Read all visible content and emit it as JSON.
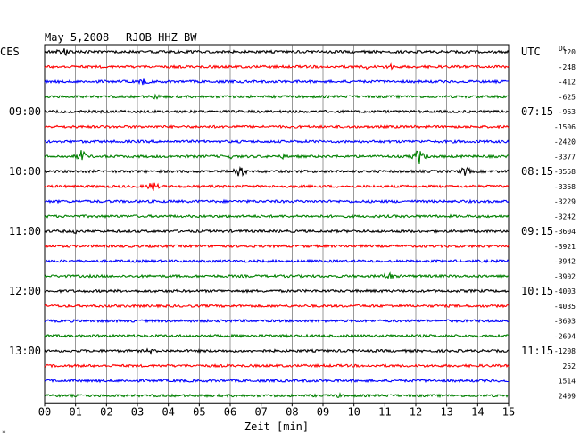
{
  "header": {
    "date": "May 5,2008",
    "station": "RJOB HHZ BW",
    "left_zone": "CES",
    "right_zone": "UTC",
    "dc_label": "DC"
  },
  "footer": {
    "xlabel": "Zeit [min]",
    "corner_mark": "*"
  },
  "colors": {
    "cycle": [
      "#000000",
      "#ff0000",
      "#0000ff",
      "#008000"
    ],
    "grid": "#000000",
    "background": "#ffffff"
  },
  "chart_data": {
    "type": "line",
    "title": "May 5,2008 RJOB HHZ BW",
    "xlabel": "Zeit [min]",
    "xlim": [
      0,
      15
    ],
    "x_ticks": [
      "00",
      "01",
      "02",
      "03",
      "04",
      "05",
      "06",
      "07",
      "08",
      "09",
      "10",
      "11",
      "12",
      "13",
      "14",
      "15"
    ],
    "trace_minutes": 15,
    "rows": 24,
    "left_hour_labels": [
      {
        "row": 4,
        "label": "09:00"
      },
      {
        "row": 8,
        "label": "10:00"
      },
      {
        "row": 12,
        "label": "11:00"
      },
      {
        "row": 16,
        "label": "12:00"
      },
      {
        "row": 20,
        "label": "13:00"
      }
    ],
    "right_hour_labels": [
      {
        "row": 0,
        "label": "UTC"
      },
      {
        "row": 4,
        "label": "07:15"
      },
      {
        "row": 8,
        "label": "08:15"
      },
      {
        "row": 12,
        "label": "09:15"
      },
      {
        "row": 16,
        "label": "10:15"
      },
      {
        "row": 20,
        "label": "11:15"
      }
    ],
    "dc_offsets": [
      120,
      -248,
      -412,
      -625,
      -963,
      -1506,
      -2420,
      -3377,
      -3558,
      -3368,
      -3229,
      -3242,
      -3604,
      -3921,
      -3942,
      -3902,
      -4003,
      -4035,
      -3693,
      -2694,
      -1208,
      252,
      1514,
      2409
    ],
    "events": [
      {
        "row": 0,
        "minute": 0.6,
        "amplitude": 7
      },
      {
        "row": 1,
        "minute": 10.4,
        "amplitude": 3
      },
      {
        "row": 1,
        "minute": 11.2,
        "amplitude": 4
      },
      {
        "row": 2,
        "minute": 3.2,
        "amplitude": 5
      },
      {
        "row": 3,
        "minute": 3.6,
        "amplitude": 4
      },
      {
        "row": 7,
        "minute": 1.2,
        "amplitude": 8
      },
      {
        "row": 7,
        "minute": 6.0,
        "amplitude": 3
      },
      {
        "row": 7,
        "minute": 7.7,
        "amplitude": 3
      },
      {
        "row": 7,
        "minute": 12.1,
        "amplitude": 10
      },
      {
        "row": 8,
        "minute": 6.3,
        "amplitude": 9
      },
      {
        "row": 8,
        "minute": 13.6,
        "amplitude": 7
      },
      {
        "row": 9,
        "minute": 3.5,
        "amplitude": 7
      },
      {
        "row": 12,
        "minute": 1.0,
        "amplitude": 3
      },
      {
        "row": 15,
        "minute": 11.1,
        "amplitude": 6
      },
      {
        "row": 20,
        "minute": 3.4,
        "amplitude": 4
      },
      {
        "row": 23,
        "minute": 9.5,
        "amplitude": 3
      }
    ]
  }
}
